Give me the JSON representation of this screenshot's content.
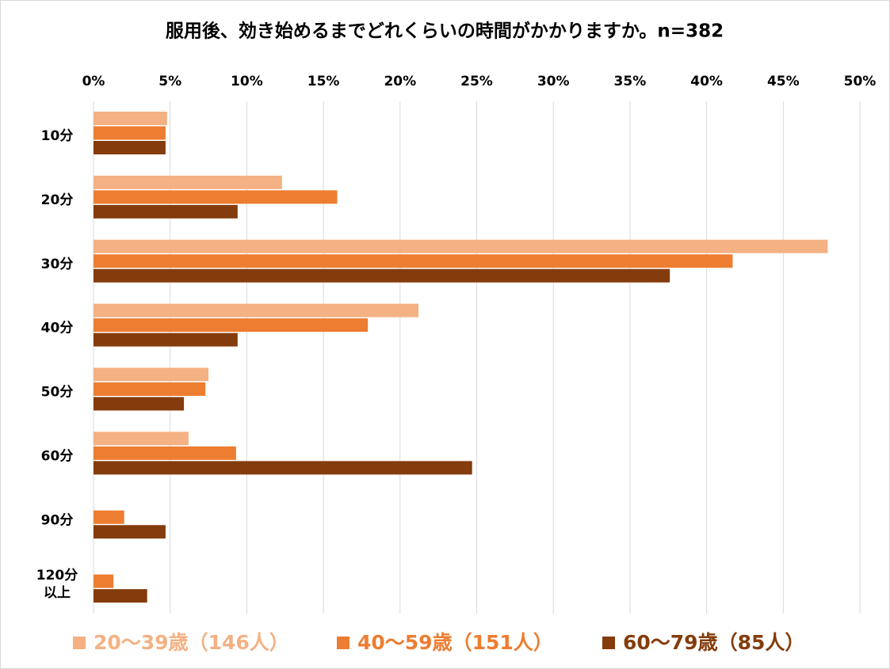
{
  "chart_data": {
    "type": "hbar",
    "title": "服用後、効き始めるまでどれくらいの時間がかかりますか。n=382",
    "categories": [
      "10分",
      "20分",
      "30分",
      "40分",
      "50分",
      "60分",
      "90分",
      "120分\n以上"
    ],
    "series": [
      {
        "name": "20～39歳（146人）",
        "color": "#F4B183",
        "values": [
          4.8,
          12.3,
          47.9,
          21.2,
          7.5,
          6.2,
          0,
          0
        ]
      },
      {
        "name": "40～59歳（151人）",
        "color": "#ED7D31",
        "values": [
          4.7,
          15.9,
          41.7,
          17.9,
          7.3,
          9.3,
          2.0,
          1.3
        ]
      },
      {
        "name": "60～79歳（85人）",
        "color": "#843C0C",
        "values": [
          4.7,
          9.4,
          37.6,
          9.4,
          5.9,
          24.7,
          4.7,
          3.5
        ]
      }
    ],
    "xlim": [
      0,
      50
    ],
    "xticks": [
      {
        "value": 0,
        "label": "0%"
      },
      {
        "value": 5,
        "label": "5%"
      },
      {
        "value": 10,
        "label": "10%"
      },
      {
        "value": 15,
        "label": "15%"
      },
      {
        "value": 20,
        "label": "20%"
      },
      {
        "value": 25,
        "label": "25%"
      },
      {
        "value": 30,
        "label": "30%"
      },
      {
        "value": 35,
        "label": "35%"
      },
      {
        "value": 40,
        "label": "40%"
      },
      {
        "value": 45,
        "label": "45%"
      },
      {
        "value": 50,
        "label": "50%"
      }
    ],
    "grid": true,
    "legend": "bottom"
  }
}
